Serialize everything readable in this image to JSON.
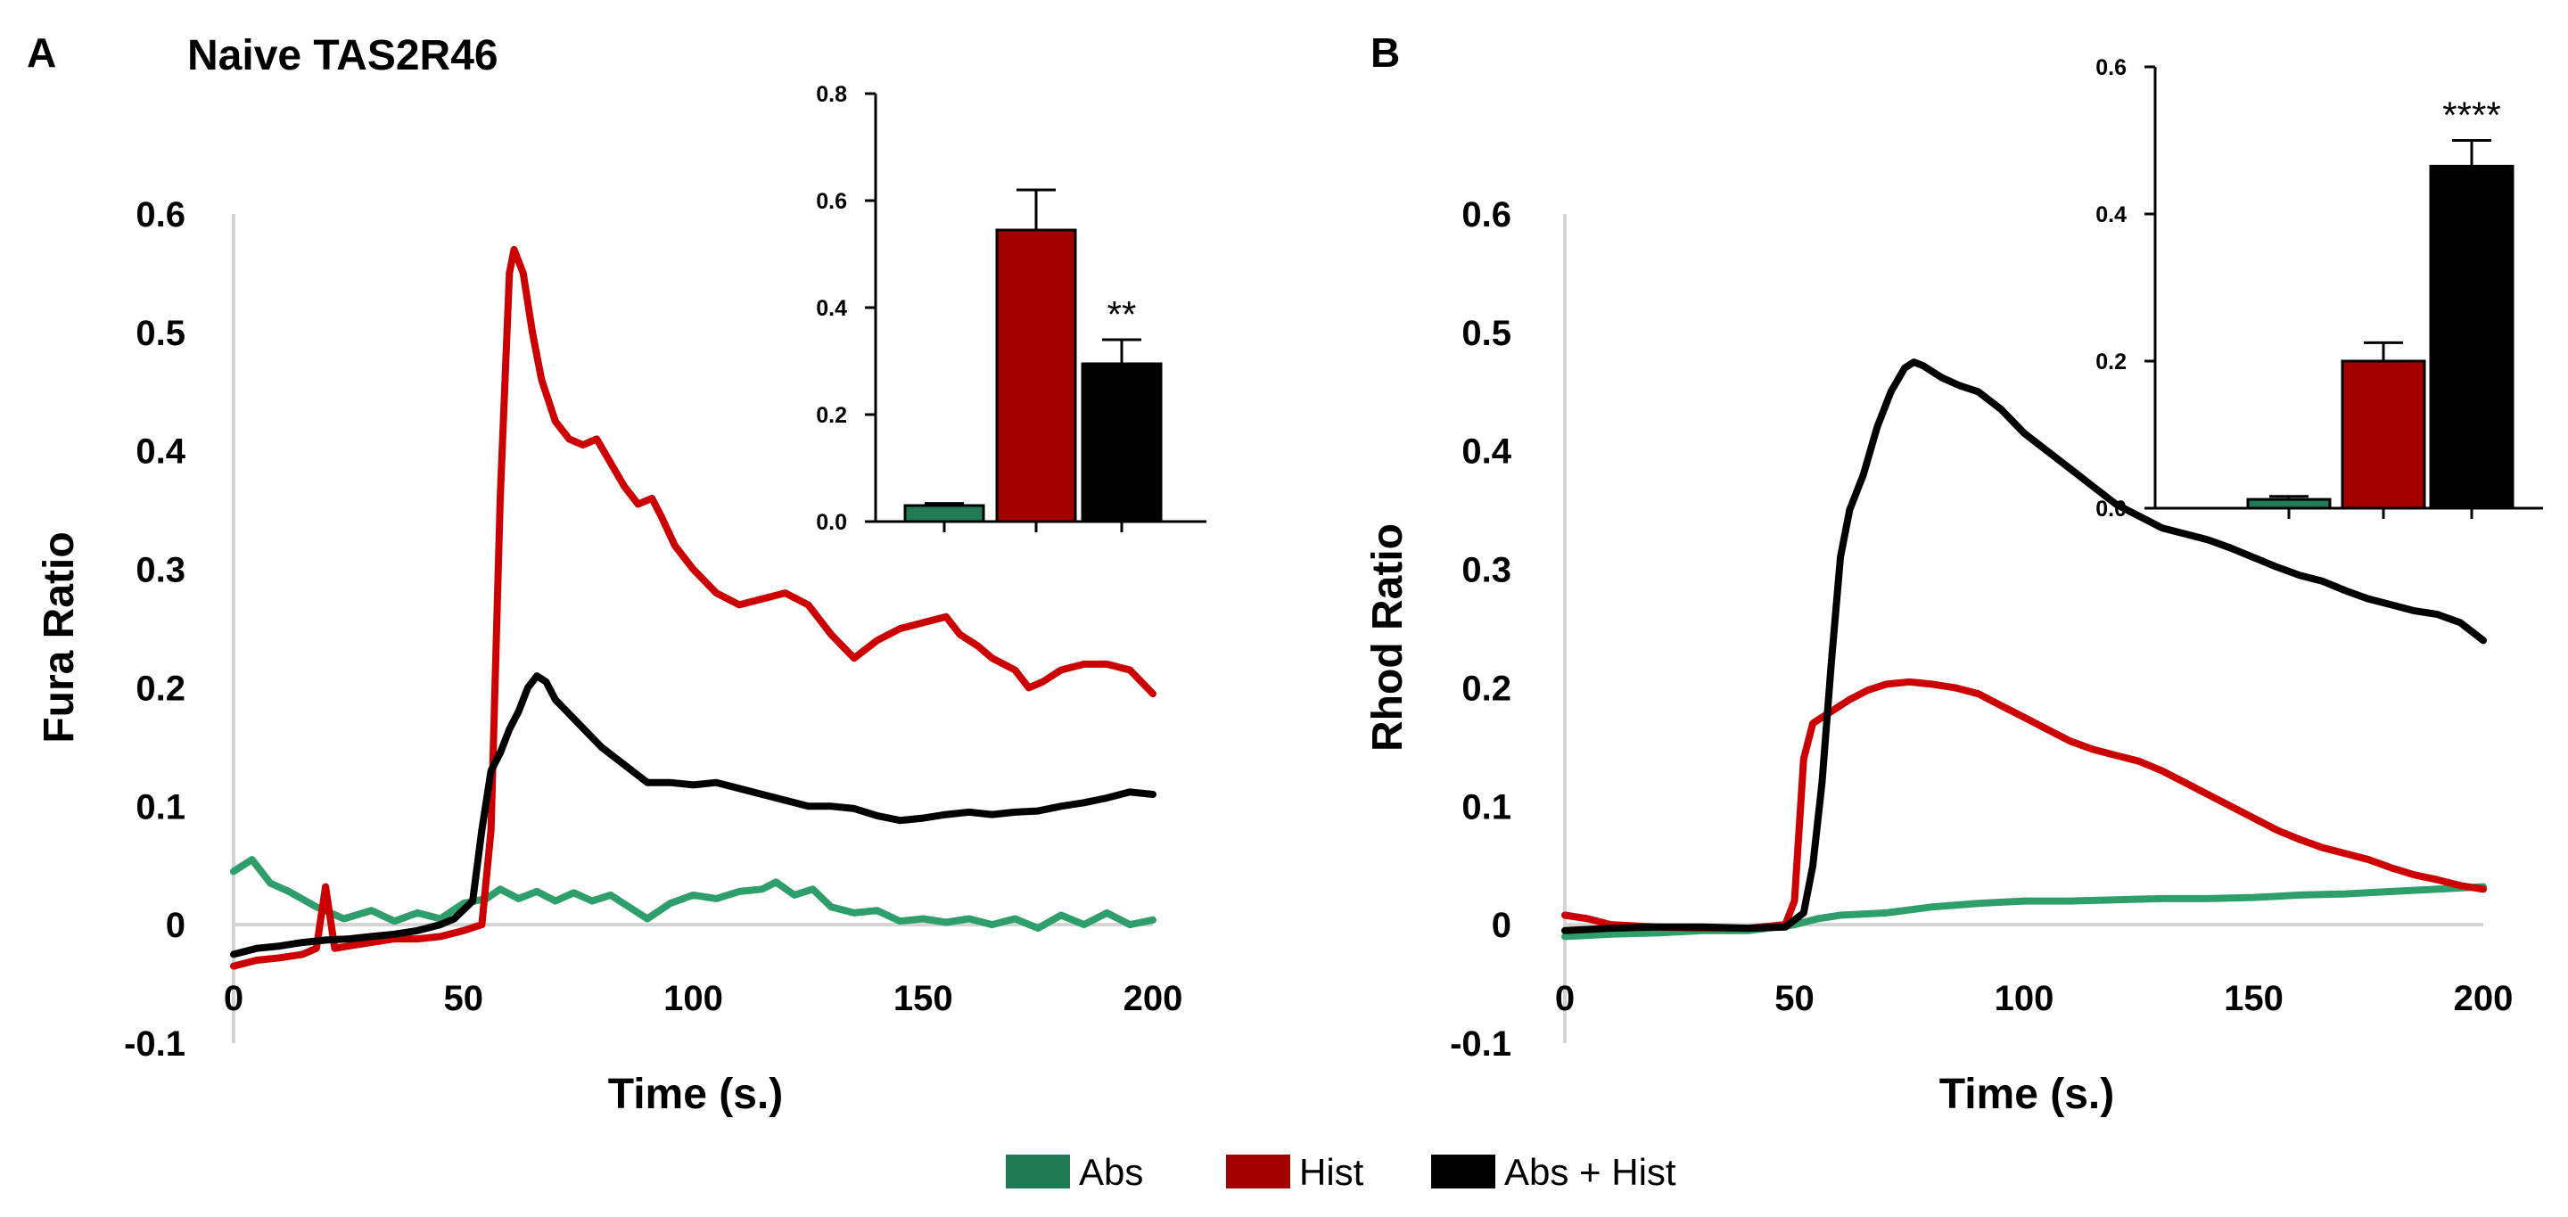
{
  "legend": [
    {
      "label": "Abs",
      "color": "#1f7a55"
    },
    {
      "label": "Hist",
      "color": "#a50000"
    },
    {
      "label": "Abs + Hist",
      "color": "#000000"
    }
  ],
  "chart_data": [
    {
      "panel": "A",
      "type": "line",
      "title": "Naive TAS2R46",
      "xlabel": "Time (s.)",
      "ylabel": "Fura Ratio",
      "xlim": [
        0,
        200
      ],
      "ylim": [
        -0.1,
        0.6
      ],
      "xticks": [
        "0",
        "50",
        "100",
        "150",
        "200"
      ],
      "yticks": [
        "-0.1",
        "0",
        "0.1",
        "0.2",
        "0.3",
        "0.4",
        "0.5",
        "0.6"
      ],
      "series": [
        {
          "name": "Abs",
          "color": "#2e9e6a",
          "points": [
            [
              0,
              0.045
            ],
            [
              4,
              0.055
            ],
            [
              8,
              0.035
            ],
            [
              12,
              0.028
            ],
            [
              18,
              0.015
            ],
            [
              24,
              0.005
            ],
            [
              30,
              0.012
            ],
            [
              35,
              0.003
            ],
            [
              40,
              0.01
            ],
            [
              45,
              0.005
            ],
            [
              50,
              0.018
            ],
            [
              55,
              0.022
            ],
            [
              58,
              0.03
            ],
            [
              62,
              0.022
            ],
            [
              66,
              0.028
            ],
            [
              70,
              0.02
            ],
            [
              74,
              0.027
            ],
            [
              78,
              0.02
            ],
            [
              82,
              0.025
            ],
            [
              86,
              0.015
            ],
            [
              90,
              0.005
            ],
            [
              95,
              0.018
            ],
            [
              100,
              0.025
            ],
            [
              105,
              0.022
            ],
            [
              110,
              0.028
            ],
            [
              115,
              0.03
            ],
            [
              118,
              0.036
            ],
            [
              122,
              0.025
            ],
            [
              126,
              0.03
            ],
            [
              130,
              0.015
            ],
            [
              135,
              0.01
            ],
            [
              140,
              0.012
            ],
            [
              145,
              0.003
            ],
            [
              150,
              0.005
            ],
            [
              155,
              0.002
            ],
            [
              160,
              0.005
            ],
            [
              165,
              0.0
            ],
            [
              170,
              0.005
            ],
            [
              175,
              -0.003
            ],
            [
              180,
              0.008
            ],
            [
              185,
              0.0
            ],
            [
              190,
              0.01
            ],
            [
              195,
              0.0
            ],
            [
              200,
              0.004
            ]
          ]
        },
        {
          "name": "Hist",
          "color": "#cc0000",
          "points": [
            [
              0,
              -0.035
            ],
            [
              5,
              -0.03
            ],
            [
              10,
              -0.028
            ],
            [
              15,
              -0.025
            ],
            [
              18,
              -0.02
            ],
            [
              20,
              0.032
            ],
            [
              22,
              -0.02
            ],
            [
              25,
              -0.018
            ],
            [
              30,
              -0.015
            ],
            [
              35,
              -0.012
            ],
            [
              40,
              -0.012
            ],
            [
              45,
              -0.01
            ],
            [
              50,
              -0.005
            ],
            [
              54,
              0.0
            ],
            [
              56,
              0.08
            ],
            [
              58,
              0.36
            ],
            [
              60,
              0.55
            ],
            [
              61,
              0.57
            ],
            [
              63,
              0.55
            ],
            [
              65,
              0.5
            ],
            [
              67,
              0.46
            ],
            [
              70,
              0.425
            ],
            [
              73,
              0.41
            ],
            [
              76,
              0.405
            ],
            [
              79,
              0.41
            ],
            [
              82,
              0.39
            ],
            [
              85,
              0.37
            ],
            [
              88,
              0.355
            ],
            [
              91,
              0.36
            ],
            [
              93,
              0.345
            ],
            [
              96,
              0.32
            ],
            [
              100,
              0.3
            ],
            [
              105,
              0.28
            ],
            [
              110,
              0.27
            ],
            [
              115,
              0.275
            ],
            [
              120,
              0.28
            ],
            [
              125,
              0.27
            ],
            [
              130,
              0.245
            ],
            [
              135,
              0.225
            ],
            [
              140,
              0.24
            ],
            [
              145,
              0.25
            ],
            [
              150,
              0.255
            ],
            [
              155,
              0.26
            ],
            [
              158,
              0.245
            ],
            [
              162,
              0.235
            ],
            [
              165,
              0.225
            ],
            [
              170,
              0.215
            ],
            [
              173,
              0.2
            ],
            [
              176,
              0.205
            ],
            [
              180,
              0.215
            ],
            [
              185,
              0.22
            ],
            [
              190,
              0.22
            ],
            [
              195,
              0.215
            ],
            [
              200,
              0.195
            ]
          ]
        },
        {
          "name": "Abs + Hist",
          "color": "#000000",
          "points": [
            [
              0,
              -0.025
            ],
            [
              5,
              -0.02
            ],
            [
              10,
              -0.018
            ],
            [
              15,
              -0.015
            ],
            [
              20,
              -0.013
            ],
            [
              25,
              -0.012
            ],
            [
              30,
              -0.01
            ],
            [
              35,
              -0.008
            ],
            [
              40,
              -0.005
            ],
            [
              45,
              0.0
            ],
            [
              48,
              0.005
            ],
            [
              52,
              0.02
            ],
            [
              54,
              0.08
            ],
            [
              56,
              0.13
            ],
            [
              58,
              0.145
            ],
            [
              60,
              0.165
            ],
            [
              62,
              0.18
            ],
            [
              64,
              0.2
            ],
            [
              66,
              0.21
            ],
            [
              68,
              0.205
            ],
            [
              70,
              0.19
            ],
            [
              75,
              0.17
            ],
            [
              80,
              0.15
            ],
            [
              85,
              0.135
            ],
            [
              90,
              0.12
            ],
            [
              95,
              0.12
            ],
            [
              100,
              0.118
            ],
            [
              105,
              0.12
            ],
            [
              110,
              0.115
            ],
            [
              115,
              0.11
            ],
            [
              120,
              0.105
            ],
            [
              125,
              0.1
            ],
            [
              130,
              0.1
            ],
            [
              135,
              0.098
            ],
            [
              140,
              0.092
            ],
            [
              145,
              0.088
            ],
            [
              150,
              0.09
            ],
            [
              155,
              0.093
            ],
            [
              160,
              0.095
            ],
            [
              165,
              0.093
            ],
            [
              170,
              0.095
            ],
            [
              175,
              0.096
            ],
            [
              180,
              0.1
            ],
            [
              185,
              0.103
            ],
            [
              190,
              0.107
            ],
            [
              195,
              0.112
            ],
            [
              200,
              0.11
            ]
          ]
        }
      ],
      "inset": {
        "type": "bar",
        "categories": [
          "Abs",
          "Hist",
          "Abs + Hist"
        ],
        "values": [
          0.03,
          0.545,
          0.295
        ],
        "errors": [
          0.004,
          0.075,
          0.045
        ],
        "colors": [
          "#1f7a55",
          "#a50000",
          "#000000"
        ],
        "ylim": [
          0,
          0.8
        ],
        "yticks": [
          "0.0",
          "0.2",
          "0.4",
          "0.6",
          "0.8"
        ],
        "significance": [
          "",
          "",
          "**"
        ]
      }
    },
    {
      "panel": "B",
      "type": "line",
      "title": "",
      "xlabel": "Time (s.)",
      "ylabel": "Rhod Ratio",
      "xlim": [
        0,
        200
      ],
      "ylim": [
        -0.1,
        0.6
      ],
      "xticks": [
        "0",
        "50",
        "100",
        "150",
        "200"
      ],
      "yticks": [
        "-0.1",
        "0",
        "0.1",
        "0.2",
        "0.3",
        "0.4",
        "0.5",
        "0.6"
      ],
      "series": [
        {
          "name": "Abs",
          "color": "#2e9e6a",
          "points": [
            [
              0,
              -0.01
            ],
            [
              10,
              -0.008
            ],
            [
              20,
              -0.007
            ],
            [
              30,
              -0.005
            ],
            [
              40,
              -0.005
            ],
            [
              50,
              0.0
            ],
            [
              55,
              0.005
            ],
            [
              60,
              0.008
            ],
            [
              70,
              0.01
            ],
            [
              80,
              0.015
            ],
            [
              90,
              0.018
            ],
            [
              100,
              0.02
            ],
            [
              110,
              0.02
            ],
            [
              120,
              0.021
            ],
            [
              130,
              0.022
            ],
            [
              140,
              0.022
            ],
            [
              150,
              0.023
            ],
            [
              160,
              0.025
            ],
            [
              170,
              0.026
            ],
            [
              180,
              0.028
            ],
            [
              190,
              0.03
            ],
            [
              200,
              0.032
            ]
          ]
        },
        {
          "name": "Hist",
          "color": "#cc0000",
          "points": [
            [
              0,
              0.008
            ],
            [
              5,
              0.005
            ],
            [
              10,
              0.0
            ],
            [
              20,
              -0.002
            ],
            [
              30,
              -0.003
            ],
            [
              40,
              -0.003
            ],
            [
              48,
              0.0
            ],
            [
              50,
              0.02
            ],
            [
              52,
              0.14
            ],
            [
              54,
              0.17
            ],
            [
              58,
              0.18
            ],
            [
              62,
              0.19
            ],
            [
              66,
              0.198
            ],
            [
              70,
              0.203
            ],
            [
              75,
              0.205
            ],
            [
              80,
              0.203
            ],
            [
              85,
              0.2
            ],
            [
              90,
              0.195
            ],
            [
              95,
              0.185
            ],
            [
              100,
              0.175
            ],
            [
              105,
              0.165
            ],
            [
              110,
              0.155
            ],
            [
              115,
              0.148
            ],
            [
              120,
              0.143
            ],
            [
              125,
              0.138
            ],
            [
              130,
              0.13
            ],
            [
              135,
              0.12
            ],
            [
              140,
              0.11
            ],
            [
              145,
              0.1
            ],
            [
              150,
              0.09
            ],
            [
              155,
              0.08
            ],
            [
              160,
              0.072
            ],
            [
              165,
              0.065
            ],
            [
              170,
              0.06
            ],
            [
              175,
              0.055
            ],
            [
              180,
              0.048
            ],
            [
              185,
              0.042
            ],
            [
              190,
              0.038
            ],
            [
              195,
              0.033
            ],
            [
              200,
              0.03
            ]
          ]
        },
        {
          "name": "Abs + Hist",
          "color": "#000000",
          "points": [
            [
              0,
              -0.005
            ],
            [
              10,
              -0.003
            ],
            [
              20,
              -0.002
            ],
            [
              30,
              -0.002
            ],
            [
              40,
              -0.003
            ],
            [
              48,
              -0.002
            ],
            [
              52,
              0.01
            ],
            [
              54,
              0.05
            ],
            [
              56,
              0.12
            ],
            [
              58,
              0.22
            ],
            [
              60,
              0.31
            ],
            [
              62,
              0.35
            ],
            [
              65,
              0.38
            ],
            [
              68,
              0.42
            ],
            [
              71,
              0.45
            ],
            [
              74,
              0.47
            ],
            [
              76,
              0.475
            ],
            [
              78,
              0.472
            ],
            [
              82,
              0.462
            ],
            [
              86,
              0.455
            ],
            [
              90,
              0.45
            ],
            [
              95,
              0.435
            ],
            [
              100,
              0.415
            ],
            [
              105,
              0.4
            ],
            [
              110,
              0.385
            ],
            [
              115,
              0.37
            ],
            [
              120,
              0.355
            ],
            [
              125,
              0.345
            ],
            [
              130,
              0.335
            ],
            [
              135,
              0.33
            ],
            [
              140,
              0.325
            ],
            [
              145,
              0.318
            ],
            [
              150,
              0.31
            ],
            [
              155,
              0.302
            ],
            [
              160,
              0.295
            ],
            [
              165,
              0.29
            ],
            [
              170,
              0.282
            ],
            [
              175,
              0.275
            ],
            [
              180,
              0.27
            ],
            [
              185,
              0.265
            ],
            [
              190,
              0.262
            ],
            [
              195,
              0.255
            ],
            [
              200,
              0.24
            ]
          ]
        }
      ],
      "inset": {
        "type": "bar",
        "categories": [
          "Abs",
          "Hist",
          "Abs + Hist"
        ],
        "values": [
          0.012,
          0.2,
          0.465
        ],
        "errors": [
          0.004,
          0.025,
          0.035
        ],
        "colors": [
          "#1f7a55",
          "#a50000",
          "#000000"
        ],
        "ylim": [
          0,
          0.6
        ],
        "yticks": [
          "0.0",
          "0.2",
          "0.4",
          "0.6"
        ],
        "significance": [
          "",
          "",
          "****"
        ]
      }
    }
  ]
}
